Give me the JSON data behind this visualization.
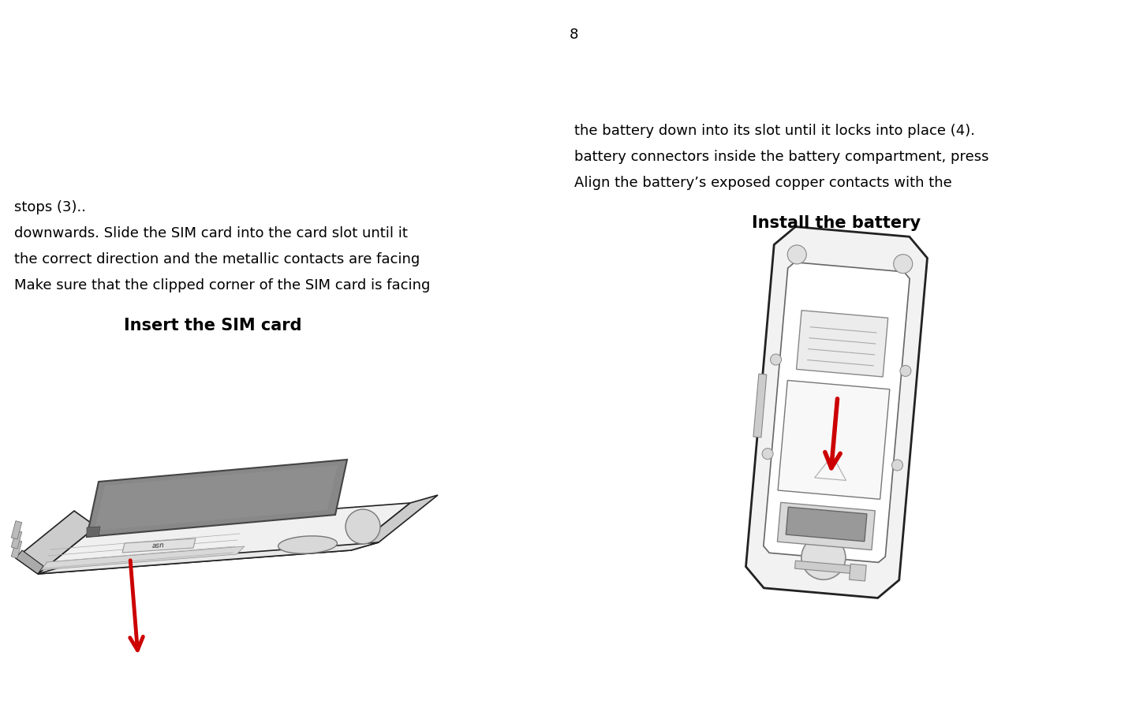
{
  "background_color": "#ffffff",
  "page_number": "8",
  "left_title": "Insert the SIM card",
  "left_body_lines": [
    "Make sure that the clipped corner of the SIM card is facing",
    "the correct direction and the metallic contacts are facing",
    "downwards. Slide the SIM card into the card slot until it",
    "stops (3).."
  ],
  "right_title": "Install the battery",
  "right_body_lines": [
    "Align the battery’s exposed copper contacts with the",
    "battery connectors inside the battery compartment, press",
    "the battery down into its slot until it locks into place (4)."
  ],
  "title_fontsize": 15,
  "body_fontsize": 13,
  "page_number_fontsize": 13,
  "arrow_color": "#cc0000",
  "outline_color": "#222222",
  "text_color": "#000000",
  "sim_card_color": "#888888",
  "device_light": "#f0f0f0",
  "device_mid": "#cccccc",
  "device_dark": "#555555"
}
